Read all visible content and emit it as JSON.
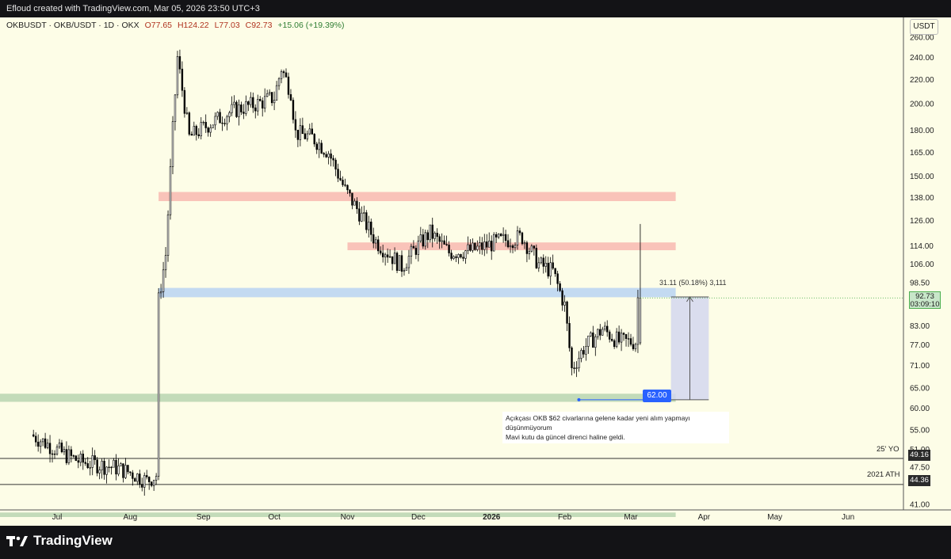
{
  "header": {
    "credit": "Efloud created with TradingView.com, Mar 05, 2026 23:50 UTC+3"
  },
  "legend": {
    "symbol": "OKBUSDT · OKB/USDT · 1D · OKX",
    "open": "O77.65",
    "high": "H124.22",
    "low": "L77.03",
    "close": "C92.73",
    "change": "+15.06 (+19.39%)"
  },
  "currency": "USDT",
  "current_price": {
    "value": "92.73",
    "countdown": "03:09:10"
  },
  "levels": [
    {
      "label": "25' YO",
      "value": "49.16"
    },
    {
      "label": "2021 ATH",
      "value": "44.36"
    }
  ],
  "target_badge": "62.00",
  "measure_label": "31.11 (50.18%) 3,111",
  "annotation": {
    "line1": "Açıkçası OKB $62 civarlarına gelene kadar yeni alım yapmayı düşünmüyorum",
    "line2": "Mavi kutu da güncel direnci haline geldi."
  },
  "footer": {
    "brand": "TradingView"
  },
  "colors": {
    "background": "#fdfde7",
    "up": "#ffffff",
    "down": "#000000",
    "red_zone": "#f8b8b0",
    "blue_zone": "#b9d3f2",
    "green_zone": "#b9d5b0",
    "accent": "#2962ff",
    "measure_box": "#d3d7ef"
  },
  "chart_data": {
    "type": "candlestick",
    "symbol": "OKBUSDT",
    "timeframe": "1D",
    "y_scale": "log",
    "ylim": [
      38,
      270
    ],
    "y_ticks": [
      260,
      240,
      220,
      200,
      180,
      165,
      150,
      138,
      126,
      114,
      106,
      98.5,
      83,
      77,
      71,
      65,
      60,
      55,
      51,
      47.5,
      41
    ],
    "x_ticks": [
      "Jul",
      "Aug",
      "Sep",
      "Oct",
      "Nov",
      "Dec",
      "2026",
      "Feb",
      "Mar",
      "Apr",
      "May",
      "Jun"
    ],
    "x_tick_dates": [
      "2025-07-01",
      "2025-08-01",
      "2025-09-01",
      "2025-10-01",
      "2025-11-01",
      "2025-12-01",
      "2026-01-01",
      "2026-02-01",
      "2026-03-01",
      "2026-04-01",
      "2026-05-01",
      "2026-06-01"
    ],
    "last_candle": {
      "date": "2026-03-05",
      "open": 77.65,
      "high": 124.22,
      "low": 77.03,
      "close": 92.73
    },
    "price_path": [
      [
        "2025-06-21",
        54
      ],
      [
        "2025-06-28",
        52
      ],
      [
        "2025-07-05",
        50
      ],
      [
        "2025-07-12",
        48.5
      ],
      [
        "2025-07-19",
        48
      ],
      [
        "2025-07-26",
        47.5
      ],
      [
        "2025-08-02",
        46.5
      ],
      [
        "2025-08-09",
        45
      ],
      [
        "2025-08-13",
        46
      ],
      [
        "2025-08-14",
        92
      ],
      [
        "2025-08-17",
        110
      ],
      [
        "2025-08-20",
        180
      ],
      [
        "2025-08-22",
        240
      ],
      [
        "2025-08-27",
        175
      ],
      [
        "2025-09-05",
        185
      ],
      [
        "2025-09-15",
        195
      ],
      [
        "2025-09-25",
        200
      ],
      [
        "2025-10-02",
        205
      ],
      [
        "2025-10-05",
        230
      ],
      [
        "2025-10-09",
        210
      ],
      [
        "2025-10-11",
        178
      ],
      [
        "2025-10-18",
        175
      ],
      [
        "2025-10-25",
        165
      ],
      [
        "2025-11-01",
        142
      ],
      [
        "2025-11-07",
        130
      ],
      [
        "2025-11-14",
        116
      ],
      [
        "2025-11-20",
        110
      ],
      [
        "2025-11-25",
        105
      ],
      [
        "2025-12-01",
        113
      ],
      [
        "2025-12-07",
        120
      ],
      [
        "2025-12-15",
        111
      ],
      [
        "2025-12-25",
        112
      ],
      [
        "2026-01-05",
        116
      ],
      [
        "2026-01-15",
        118
      ],
      [
        "2026-01-22",
        106
      ],
      [
        "2026-01-28",
        103
      ],
      [
        "2026-02-02",
        90
      ],
      [
        "2026-02-05",
        70
      ],
      [
        "2026-02-10",
        76
      ],
      [
        "2026-02-18",
        82
      ],
      [
        "2026-02-25",
        78
      ],
      [
        "2026-03-04",
        78
      ],
      [
        "2026-03-05",
        92.73
      ]
    ],
    "zones": [
      {
        "type": "resistance",
        "color": "red",
        "from": "2025-08-13",
        "to": "2026-03-20",
        "low": 136,
        "high": 141
      },
      {
        "type": "resistance",
        "color": "red",
        "from": "2025-11-01",
        "to": "2026-03-20",
        "low": 112,
        "high": 115.5
      },
      {
        "type": "support",
        "color": "blue",
        "from": "2025-08-13",
        "to": "2026-03-20",
        "low": 93,
        "high": 96.5
      },
      {
        "type": "support",
        "color": "green",
        "from": "2025-06-21",
        "to": "2026-03-20",
        "low": 61.5,
        "high": 63.5
      },
      {
        "type": "support",
        "color": "green",
        "from": "2025-06-21",
        "to": "2026-03-20",
        "low": 39,
        "high": 39.7
      }
    ],
    "horizontal_lines": [
      {
        "label": "25' YO",
        "value": 49.16
      },
      {
        "label": "2021 ATH",
        "value": 44.36
      }
    ],
    "target_line": {
      "value": 62.0,
      "from": "2026-02-07",
      "to": "2026-03-18"
    },
    "measure": {
      "from": 62.0,
      "to": 93.11,
      "change": 31.11,
      "percent": 50.18,
      "ticks": 3111,
      "dates": [
        "2026-03-18",
        "2026-04-03"
      ]
    }
  }
}
